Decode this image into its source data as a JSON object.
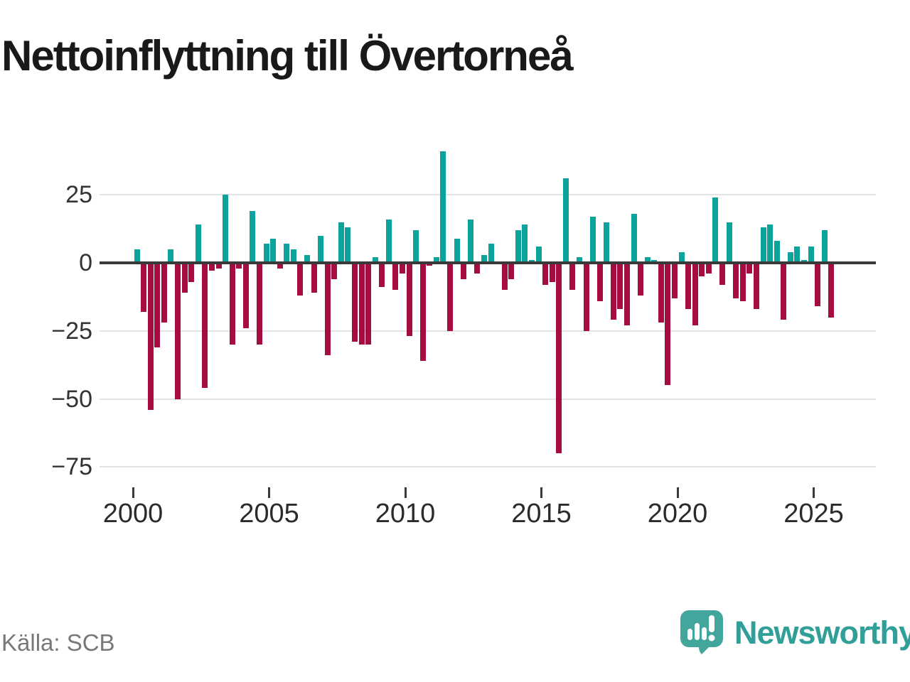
{
  "title": "Nettoinflyttning till Övertorneå",
  "source": "Källa: SCB",
  "logo": {
    "text": "Newsworthy",
    "icon": "newsworthy-speech-bubble-barchart-icon",
    "color": "#2f9f97",
    "icon_color": "#43a69d"
  },
  "colors": {
    "positive_bar": "#0ba39c",
    "negative_bar": "#a50d40",
    "zero_line": "#3a3a3a",
    "gridline": "#e3e3e3",
    "axis_text": "#333333",
    "x_axis_text": "#2b2b2b",
    "title_text": "#191919",
    "source_text": "#787878"
  },
  "chart_data": {
    "type": "bar",
    "title": "Nettoinflyttning till Övertorneå",
    "xlabel": "",
    "ylabel": "",
    "frequency": "quarterly",
    "start_year": 2000,
    "start_quarter": 1,
    "end_year": 2025,
    "end_quarter": 3,
    "values": [
      5,
      -18,
      -54,
      -31,
      -22,
      5,
      -50,
      -11,
      -7,
      14,
      -46,
      -3,
      -2,
      25,
      -30,
      -2,
      -24,
      19,
      -30,
      7,
      9,
      -2,
      7,
      5,
      -12,
      3,
      -11,
      10,
      -34,
      -6,
      15,
      13,
      -29,
      -30,
      -30,
      2,
      -9,
      16,
      -10,
      -4,
      -27,
      12,
      -36,
      -1,
      2,
      41,
      -25,
      9,
      -6,
      16,
      -4,
      3,
      7,
      0,
      -10,
      -6,
      12,
      14,
      1,
      6,
      -8,
      -7,
      -70,
      31,
      -10,
      2,
      -25,
      17,
      -14,
      15,
      -21,
      -17,
      -23,
      18,
      -12,
      2,
      1,
      -22,
      -45,
      -13,
      4,
      -17,
      -23,
      -5,
      -4,
      24,
      -8,
      15,
      -13,
      -14,
      -4,
      -17,
      13,
      14,
      8,
      -21,
      4,
      6,
      1,
      6,
      -16,
      12,
      -20
    ],
    "yticks": [
      25,
      0,
      -25,
      -50,
      -75
    ],
    "ytick_labels": [
      "25",
      "0",
      "−25",
      "−50",
      "−75"
    ],
    "xticks": [
      2000,
      2005,
      2010,
      2015,
      2020,
      2025
    ],
    "xtick_labels": [
      "2000",
      "2005",
      "2010",
      "2015",
      "2020",
      "2025"
    ],
    "ylim": [
      -75,
      45
    ],
    "grid": "horizontal",
    "legend": "none",
    "positive_color": "#0ba39c",
    "negative_color": "#a50d40"
  }
}
